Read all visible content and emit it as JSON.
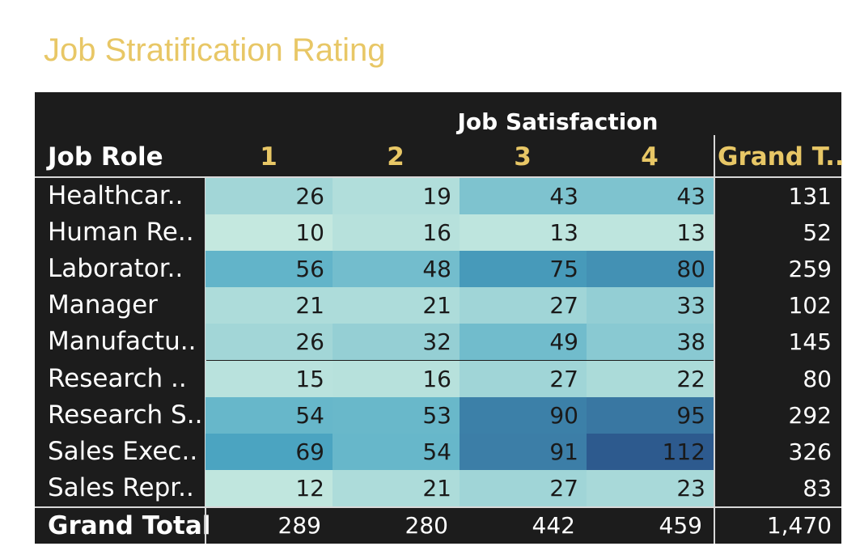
{
  "title": "Job Stratification Rating",
  "chart_data": {
    "type": "heatmap",
    "title": "Job Stratification Rating",
    "column_header": "Job Satisfaction",
    "row_header": "Job Role",
    "columns": [
      "1",
      "2",
      "3",
      "4"
    ],
    "grand_total_column_label": "Grand T..",
    "grand_total_row_label": "Grand Total",
    "rows": [
      {
        "label": "Healthcar..",
        "values": [
          26,
          19,
          43,
          43
        ],
        "total": "131"
      },
      {
        "label": "Human Re..",
        "values": [
          10,
          16,
          13,
          13
        ],
        "total": "52"
      },
      {
        "label": "Laborator..",
        "values": [
          56,
          48,
          75,
          80
        ],
        "total": "259"
      },
      {
        "label": "Manager",
        "values": [
          21,
          21,
          27,
          33
        ],
        "total": "102"
      },
      {
        "label": "Manufactu..",
        "values": [
          26,
          32,
          49,
          38
        ],
        "total": "145"
      },
      {
        "label": "Research ..",
        "values": [
          15,
          16,
          27,
          22
        ],
        "total": "80"
      },
      {
        "label": "Research S..",
        "values": [
          54,
          53,
          90,
          95
        ],
        "total": "292"
      },
      {
        "label": "Sales Exec..",
        "values": [
          69,
          54,
          91,
          112
        ],
        "total": "326"
      },
      {
        "label": "Sales Repr..",
        "values": [
          12,
          21,
          27,
          23
        ],
        "total": "83"
      }
    ],
    "column_totals": [
      "289",
      "280",
      "442",
      "459"
    ],
    "grand_total": "1,470",
    "color_scale": {
      "low": "#c4e8df",
      "mid": "#4da9c4",
      "high": "#2d5a8e",
      "min": 10,
      "max": 112
    }
  }
}
